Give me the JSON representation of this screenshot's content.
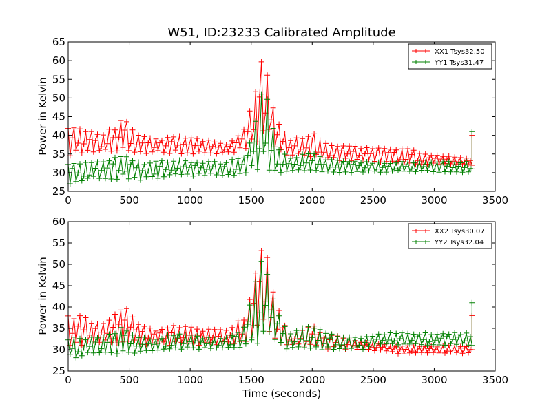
{
  "figure": {
    "title": "W51, ID:23233 Calibrated Amplitude",
    "xlabel": "Time (seconds)",
    "colors": {
      "xx": "#ff0000",
      "yy": "#008000"
    }
  },
  "chart_data": [
    {
      "type": "line",
      "title": "W51, ID:23233 Calibrated Amplitude",
      "xlabel": "",
      "ylabel": "Power in Kelvin",
      "xlim": [
        0,
        3500
      ],
      "ylim": [
        25,
        65
      ],
      "xticks": [
        0,
        500,
        1000,
        1500,
        2000,
        2500,
        3000,
        3500
      ],
      "yticks": [
        25,
        30,
        35,
        40,
        45,
        50,
        55,
        60,
        65
      ],
      "legend_position": "top-right",
      "marker": "+",
      "series": [
        {
          "name": "XX1 Tsys32.50",
          "color": "#ff0000",
          "envelope": [
            [
              0,
              34,
              43
            ],
            [
              100,
              35,
              42
            ],
            [
              200,
              35,
              41
            ],
            [
              300,
              35,
              41
            ],
            [
              400,
              35,
              43
            ],
            [
              450,
              35,
              45
            ],
            [
              500,
              35,
              44
            ],
            [
              550,
              35,
              41
            ],
            [
              700,
              35,
              39
            ],
            [
              900,
              35,
              40
            ],
            [
              1100,
              35,
              39
            ],
            [
              1300,
              35,
              38
            ],
            [
              1450,
              36,
              42
            ],
            [
              1550,
              38,
              55
            ],
            [
              1600,
              40,
              62
            ],
            [
              1650,
              38,
              55
            ],
            [
              1700,
              36,
              46
            ],
            [
              1800,
              34,
              39
            ],
            [
              2000,
              34,
              41
            ],
            [
              2100,
              33,
              38
            ],
            [
              2400,
              33,
              37
            ],
            [
              2700,
              32,
              37
            ],
            [
              3000,
              32,
              35
            ],
            [
              3300,
              32,
              34
            ]
          ],
          "spike": {
            "x": 3310,
            "values": [
              32,
              40
            ]
          }
        },
        {
          "name": "YY1 Tsys31.47",
          "color": "#008000",
          "envelope": [
            [
              0,
              27,
              33
            ],
            [
              100,
              27,
              33
            ],
            [
              200,
              28,
              33
            ],
            [
              300,
              28,
              33
            ],
            [
              400,
              28,
              35
            ],
            [
              450,
              28,
              36
            ],
            [
              550,
              28,
              33
            ],
            [
              700,
              28,
              33
            ],
            [
              900,
              29,
              34
            ],
            [
              1100,
              29,
              33
            ],
            [
              1300,
              29,
              33
            ],
            [
              1450,
              29,
              35
            ],
            [
              1550,
              30,
              47
            ],
            [
              1600,
              31,
              54
            ],
            [
              1650,
              30,
              48
            ],
            [
              1700,
              30,
              38
            ],
            [
              1800,
              30,
              34
            ],
            [
              2000,
              30,
              36
            ],
            [
              2100,
              30,
              34
            ],
            [
              2400,
              30,
              33
            ],
            [
              2700,
              30,
              33
            ],
            [
              3000,
              30,
              33
            ],
            [
              3300,
              30,
              33
            ]
          ],
          "spike": {
            "x": 3310,
            "values": [
              31,
              41
            ]
          }
        }
      ]
    },
    {
      "type": "line",
      "title": "",
      "xlabel": "Time (seconds)",
      "ylabel": "Power in Kelvin",
      "xlim": [
        0,
        3500
      ],
      "ylim": [
        25,
        60
      ],
      "xticks": [
        0,
        500,
        1000,
        1500,
        2000,
        2500,
        3000,
        3500
      ],
      "yticks": [
        25,
        30,
        35,
        40,
        45,
        50,
        55,
        60
      ],
      "legend_position": "top-right",
      "marker": "+",
      "series": [
        {
          "name": "XX2 Tsys30.07",
          "color": "#ff0000",
          "envelope": [
            [
              0,
              31,
              39
            ],
            [
              100,
              31,
              38
            ],
            [
              200,
              31,
              37
            ],
            [
              300,
              31,
              37
            ],
            [
              400,
              31,
              39
            ],
            [
              450,
              31,
              41
            ],
            [
              500,
              31,
              40
            ],
            [
              550,
              31,
              37
            ],
            [
              700,
              31,
              35
            ],
            [
              900,
              31,
              36
            ],
            [
              1100,
              31,
              35
            ],
            [
              1300,
              31,
              35
            ],
            [
              1450,
              31,
              38
            ],
            [
              1550,
              32,
              50
            ],
            [
              1600,
              33,
              57
            ],
            [
              1650,
              32,
              50
            ],
            [
              1700,
              31,
              42
            ],
            [
              1800,
              31,
              34
            ],
            [
              2000,
              30,
              36
            ],
            [
              2100,
              30,
              34
            ],
            [
              2400,
              30,
              32
            ],
            [
              2700,
              29,
              31
            ],
            [
              3000,
              29,
              31
            ],
            [
              3300,
              29,
              31
            ]
          ],
          "spike": {
            "x": 3310,
            "values": [
              30,
              38
            ]
          }
        },
        {
          "name": "YY2 Tsys32.04",
          "color": "#008000",
          "envelope": [
            [
              0,
              28,
              33
            ],
            [
              100,
              28,
              33
            ],
            [
              200,
              29,
              33
            ],
            [
              300,
              29,
              33
            ],
            [
              400,
              29,
              35
            ],
            [
              450,
              29,
              36
            ],
            [
              550,
              29,
              33
            ],
            [
              700,
              29,
              33
            ],
            [
              900,
              30,
              34
            ],
            [
              1100,
              30,
              33
            ],
            [
              1300,
              30,
              33
            ],
            [
              1450,
              30,
              36
            ],
            [
              1550,
              31,
              48
            ],
            [
              1600,
              32,
              55
            ],
            [
              1650,
              31,
              49
            ],
            [
              1700,
              31,
              40
            ],
            [
              1800,
              30,
              34
            ],
            [
              2000,
              30,
              36
            ],
            [
              2100,
              30,
              34
            ],
            [
              2400,
              30,
              33
            ],
            [
              2600,
              31,
              34
            ],
            [
              2800,
              31,
              34
            ],
            [
              3000,
              31,
              34
            ],
            [
              3300,
              31,
              34
            ]
          ],
          "spike": {
            "x": 3310,
            "values": [
              31,
              41
            ]
          }
        }
      ]
    }
  ]
}
